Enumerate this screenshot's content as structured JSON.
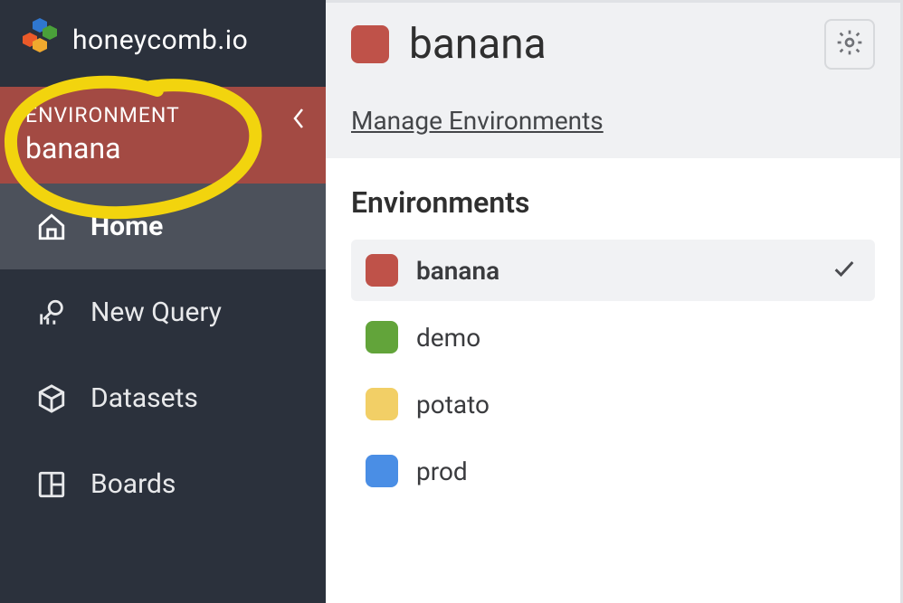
{
  "brand": "honeycomb.io",
  "logo_hex_colors": [
    "#2f77d0",
    "#f0a92e",
    "#4aa03a",
    "#eb5a29"
  ],
  "sidebar": {
    "env_label": "ENVIRONMENT",
    "env_name": "banana",
    "env_banner_bg": "#a34a43",
    "nav": [
      {
        "key": "home",
        "label": "Home",
        "active": true
      },
      {
        "key": "newquery",
        "label": "New Query",
        "active": false
      },
      {
        "key": "datasets",
        "label": "Datasets",
        "active": false
      },
      {
        "key": "boards",
        "label": "Boards",
        "active": false
      }
    ]
  },
  "main": {
    "title": "banana",
    "title_chip_color": "#bf5249",
    "manage_link": "Manage Environments",
    "section_title": "Environments",
    "environments": [
      {
        "name": "banana",
        "color": "#bf5249",
        "selected": true
      },
      {
        "name": "demo",
        "color": "#62a43a",
        "selected": false
      },
      {
        "name": "potato",
        "color": "#f2cf66",
        "selected": false
      },
      {
        "name": "prod",
        "color": "#4a8ee5",
        "selected": false
      }
    ]
  },
  "annotation": {
    "stroke": "#f2d40e",
    "stroke_width": 14
  },
  "colors": {
    "sidebar_bg": "#2b313c",
    "sidebar_active_bg": "#4c515b",
    "main_header_bg": "#f0f1f3",
    "border": "#e0e2e5",
    "text_dark": "#2f2f2f",
    "text_mid": "#444649",
    "env_item_selected_bg": "#f1f2f4"
  }
}
